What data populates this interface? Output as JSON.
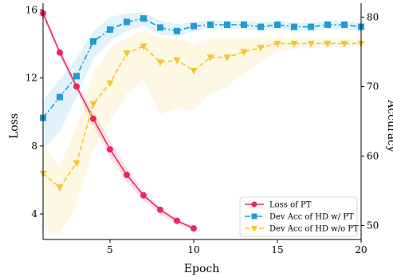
{
  "chart_data": {
    "type": "line",
    "xlabel": "Epoch",
    "ylabel_left": "Loss",
    "ylabel_right": "Accuracy",
    "xlim": [
      1,
      20
    ],
    "ylim_left": [
      2.5,
      16.4
    ],
    "ylim_right": [
      48,
      82
    ],
    "x_ticks": [
      5,
      10,
      15,
      20
    ],
    "y_ticks_left": [
      4,
      8,
      12,
      16
    ],
    "y_ticks_right": [
      50,
      60,
      70,
      80
    ],
    "legend_position": "lower-right",
    "grid": false,
    "series": [
      {
        "name": "Loss of PT",
        "axis": "left",
        "color": "#f0255c",
        "marker": "circle",
        "line_style": "solid",
        "x": [
          1,
          2,
          3,
          4,
          5,
          6,
          7,
          8,
          9,
          10
        ],
        "y": [
          15.8,
          13.5,
          11.5,
          9.6,
          7.8,
          6.3,
          5.1,
          4.25,
          3.6,
          3.15
        ],
        "band_low": [
          15.6,
          13.3,
          11.2,
          9.2,
          7.3,
          5.9,
          4.8,
          4.0,
          3.4,
          3.05
        ],
        "band_high": [
          16.0,
          13.7,
          11.7,
          10.0,
          8.3,
          6.7,
          5.3,
          4.4,
          3.75,
          3.25
        ]
      },
      {
        "name": "Dev Acc of HD w/ PT",
        "axis": "right",
        "color": "#1f9bd8",
        "marker": "square",
        "line_style": "dashdot",
        "x": [
          1,
          2,
          3,
          4,
          5,
          6,
          7,
          8,
          9,
          10,
          11,
          12,
          13,
          14,
          15,
          16,
          17,
          18,
          19,
          20
        ],
        "y": [
          65.5,
          68.5,
          71.5,
          76.5,
          78.2,
          79.3,
          79.8,
          78.5,
          78.0,
          78.7,
          78.9,
          78.9,
          78.9,
          78.6,
          78.9,
          78.6,
          78.6,
          78.9,
          78.9,
          78.6
        ],
        "band_low": [
          61.0,
          63.5,
          68.5,
          74.0,
          76.5,
          78.0,
          78.8,
          77.5,
          77.2,
          78.0,
          78.3,
          78.3,
          78.3,
          78.0,
          78.3,
          78.0,
          78.0,
          78.3,
          78.3,
          78.0
        ],
        "band_high": [
          68.0,
          71.0,
          74.0,
          78.0,
          80.0,
          80.5,
          80.7,
          79.5,
          79.0,
          79.3,
          79.5,
          79.5,
          79.5,
          79.2,
          79.5,
          79.2,
          79.2,
          79.5,
          79.5,
          79.2
        ]
      },
      {
        "name": "Dev Acc of HD w/o PT",
        "axis": "right",
        "color": "#f7c52b",
        "marker": "triangle-down",
        "line_style": "dashed",
        "x": [
          1,
          2,
          3,
          4,
          5,
          6,
          7,
          8,
          9,
          10,
          11,
          12,
          13,
          14,
          15,
          16,
          17,
          18,
          19,
          20
        ],
        "y": [
          57.5,
          55.5,
          59.0,
          67.5,
          70.5,
          74.8,
          75.8,
          73.5,
          73.8,
          72.3,
          74.2,
          74.2,
          75.0,
          75.6,
          76.2,
          76.2,
          76.2,
          76.2,
          76.2,
          76.2
        ],
        "band_low": [
          49.5,
          48.8,
          53.0,
          61.0,
          65.0,
          69.0,
          71.0,
          66.0,
          67.0,
          66.5,
          69.0,
          70.0,
          72.0,
          73.5,
          75.0,
          75.5,
          75.5,
          75.7,
          75.7,
          75.7
        ],
        "band_high": [
          61.5,
          58.5,
          64.0,
          72.0,
          75.5,
          77.0,
          78.0,
          77.0,
          77.0,
          76.0,
          77.0,
          77.0,
          77.0,
          77.0,
          77.0,
          77.0,
          77.0,
          77.0,
          77.0,
          77.0
        ]
      }
    ]
  }
}
